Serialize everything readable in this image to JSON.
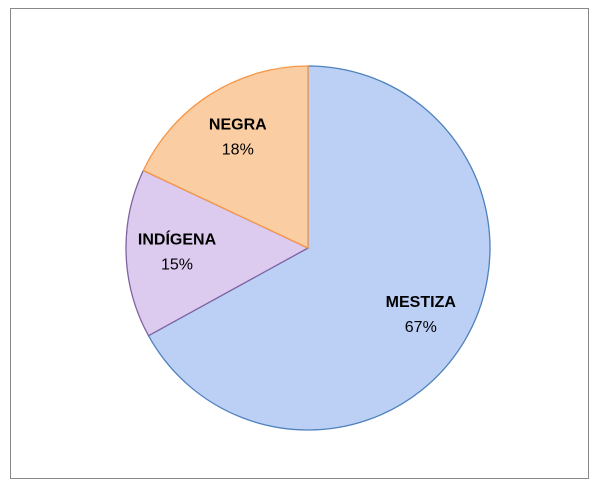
{
  "chart_data": {
    "type": "pie",
    "categories": [
      "MESTIZA",
      "INDÍGENA",
      "NEGRA"
    ],
    "values": [
      67,
      15,
      18
    ],
    "value_labels": [
      "67%",
      "15%",
      "18%"
    ],
    "colors": [
      "#bcd0f6",
      "#dccbee",
      "#fbcda3"
    ],
    "edge_colors": [
      "#4f81bd",
      "#8064a2",
      "#f79646"
    ]
  }
}
